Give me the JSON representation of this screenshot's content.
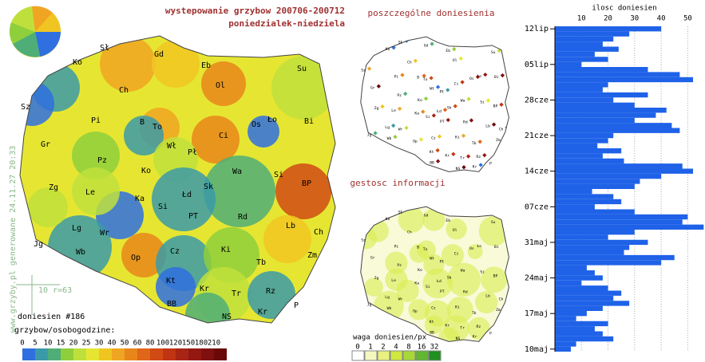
{
  "header": {
    "title": "wystepowanie grzybow 200706-200712",
    "subtitle": "poniedzialek-niedziela"
  },
  "main_map": {
    "labels": [
      "Ko",
      "Sł",
      "Gd",
      "Eb",
      "Su",
      "Ol",
      "Ch",
      "Sz",
      "Pi",
      "B",
      "To",
      "Ci",
      "Os",
      "Ło",
      "Bi",
      "Gr",
      "Wł",
      "Pł",
      "Pz",
      "Ko",
      "Wa",
      "Si",
      "Zg",
      "Le",
      "Ka",
      "Łd",
      "Sk",
      "BP",
      "Si",
      "PT",
      "Rd",
      "Lb",
      "Ch",
      "Lg",
      "Jg",
      "Wb",
      "Wr",
      "Op",
      "Cz",
      "Ki",
      "Zm",
      "Tb",
      "Kt",
      "Kr",
      "Tr",
      "Rz",
      "BB",
      "NS",
      "Kr",
      "P"
    ],
    "watermark": "www.grzyby.pl generowane 24.11.27 20:33",
    "scale_note": "10 r=63"
  },
  "legend": {
    "count": "doniesien #186",
    "title": "grzybow/osobogodzine:",
    "labels": [
      0,
      5,
      10,
      15,
      20,
      25,
      30,
      40,
      50,
      60,
      80,
      100,
      120,
      150,
      180,
      210
    ],
    "colors": [
      "#2f6fe0",
      "#3b9aa8",
      "#4fae78",
      "#8fcf3c",
      "#bfe03c",
      "#e6e632",
      "#f0c522",
      "#f0a522",
      "#e8861a",
      "#e0661a",
      "#d04a14",
      "#c03414",
      "#a82414",
      "#941812",
      "#801010",
      "#6a0808"
    ]
  },
  "points_map": {
    "title": "poszczególne doniesienia"
  },
  "density_map": {
    "title": "gestosc informacji",
    "legend_title": "waga doniesien/px",
    "labels": [
      0,
      1,
      2,
      4,
      8,
      16,
      32
    ],
    "colors": [
      "#ffffff",
      "#f4f8c0",
      "#e8f080",
      "#d0e840",
      "#a8d838",
      "#60b830",
      "#209020"
    ]
  },
  "chart_data": {
    "type": "bar",
    "orientation": "horizontal",
    "x_label": "ilosc doniesien",
    "color": "#1f62e8",
    "categories": [
      "12lip",
      null,
      null,
      null,
      null,
      null,
      null,
      "05lip",
      null,
      null,
      null,
      null,
      null,
      null,
      "28cze",
      null,
      null,
      null,
      null,
      null,
      null,
      "21cze",
      null,
      null,
      null,
      null,
      null,
      null,
      "14cze",
      null,
      null,
      null,
      null,
      null,
      null,
      "07cze",
      null,
      null,
      null,
      null,
      null,
      null,
      "31maj",
      null,
      null,
      null,
      null,
      null,
      null,
      "24maj",
      null,
      null,
      null,
      null,
      null,
      null,
      "17maj",
      null,
      null,
      null,
      null,
      null,
      null,
      "10maj"
    ],
    "values": [
      40,
      28,
      22,
      18,
      24,
      15,
      20,
      10,
      35,
      47,
      52,
      20,
      18,
      35,
      22,
      30,
      42,
      38,
      30,
      44,
      47,
      22,
      20,
      16,
      25,
      18,
      26,
      48,
      52,
      40,
      32,
      30,
      14,
      22,
      25,
      15,
      30,
      50,
      48,
      56,
      30,
      20,
      35,
      28,
      26,
      45,
      40,
      12,
      15,
      18,
      10,
      20,
      25,
      22,
      28,
      18,
      12,
      8,
      20,
      15,
      18,
      22,
      8,
      6
    ],
    "xlim": [
      0,
      55
    ],
    "xticks": [
      10,
      20,
      30,
      40,
      50
    ],
    "grid": true
  }
}
